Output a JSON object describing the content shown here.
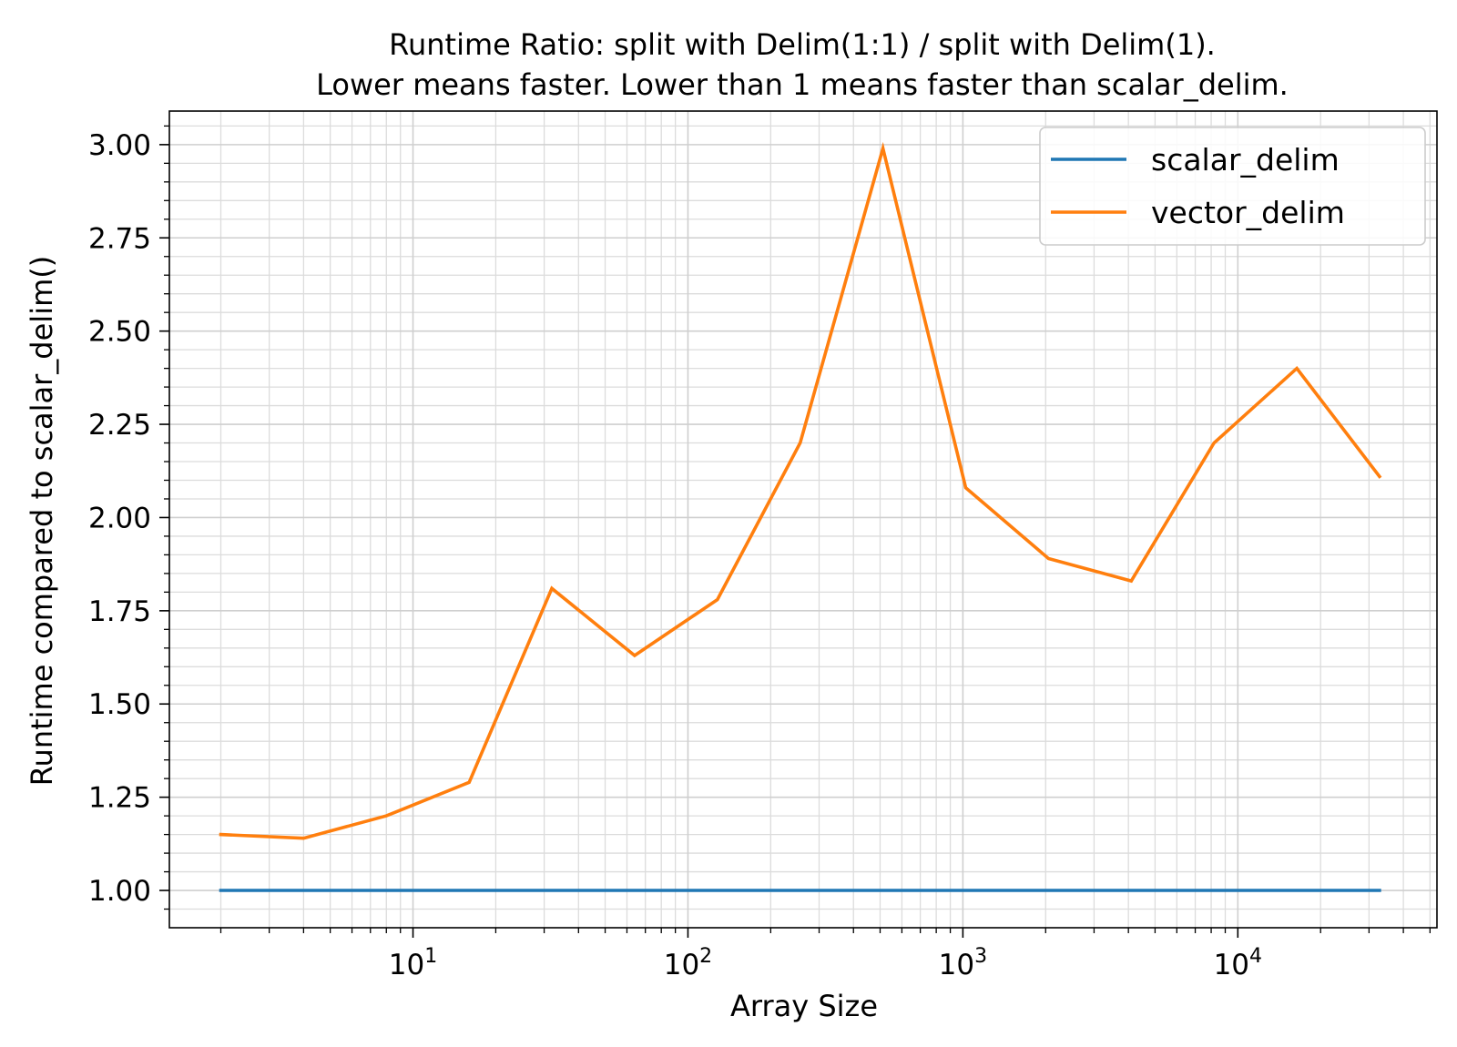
{
  "chart_data": {
    "type": "line",
    "title": "Runtime Ratio: split with Delim(1:1) / split with Delim(1).",
    "subtitle": "Lower means faster. Lower than 1 means faster than scalar_delim.",
    "xlabel": "Array Size",
    "ylabel": "Runtime compared to scalar_delim()",
    "xscale": "log",
    "xlim": [
      1.3,
      53000
    ],
    "ylim": [
      0.9,
      3.09
    ],
    "grid": true,
    "legend_position": "top-right",
    "x_ticks": [
      {
        "value": 10,
        "base": "10",
        "exp": "1"
      },
      {
        "value": 100,
        "base": "10",
        "exp": "2"
      },
      {
        "value": 1000,
        "base": "10",
        "exp": "3"
      },
      {
        "value": 10000,
        "base": "10",
        "exp": "4"
      }
    ],
    "y_ticks": [
      {
        "value": 1.0,
        "label": "1.00"
      },
      {
        "value": 1.25,
        "label": "1.25"
      },
      {
        "value": 1.5,
        "label": "1.50"
      },
      {
        "value": 1.75,
        "label": "1.75"
      },
      {
        "value": 2.0,
        "label": "2.00"
      },
      {
        "value": 2.25,
        "label": "2.25"
      },
      {
        "value": 2.5,
        "label": "2.50"
      },
      {
        "value": 2.75,
        "label": "2.75"
      },
      {
        "value": 3.0,
        "label": "3.00"
      }
    ],
    "x": [
      2,
      4,
      8,
      16,
      32,
      64,
      128,
      256,
      512,
      1024,
      2048,
      4096,
      8192,
      16384,
      32768
    ],
    "series": [
      {
        "name": "scalar_delim",
        "color": "#1f77b4",
        "values": [
          1,
          1,
          1,
          1,
          1,
          1,
          1,
          1,
          1,
          1,
          1,
          1,
          1,
          1,
          1
        ]
      },
      {
        "name": "vector_delim",
        "color": "#ff7f0e",
        "values": [
          1.15,
          1.14,
          1.2,
          1.29,
          1.81,
          1.63,
          1.78,
          2.2,
          2.99,
          2.08,
          1.89,
          1.83,
          2.2,
          2.4,
          2.11
        ]
      }
    ]
  }
}
